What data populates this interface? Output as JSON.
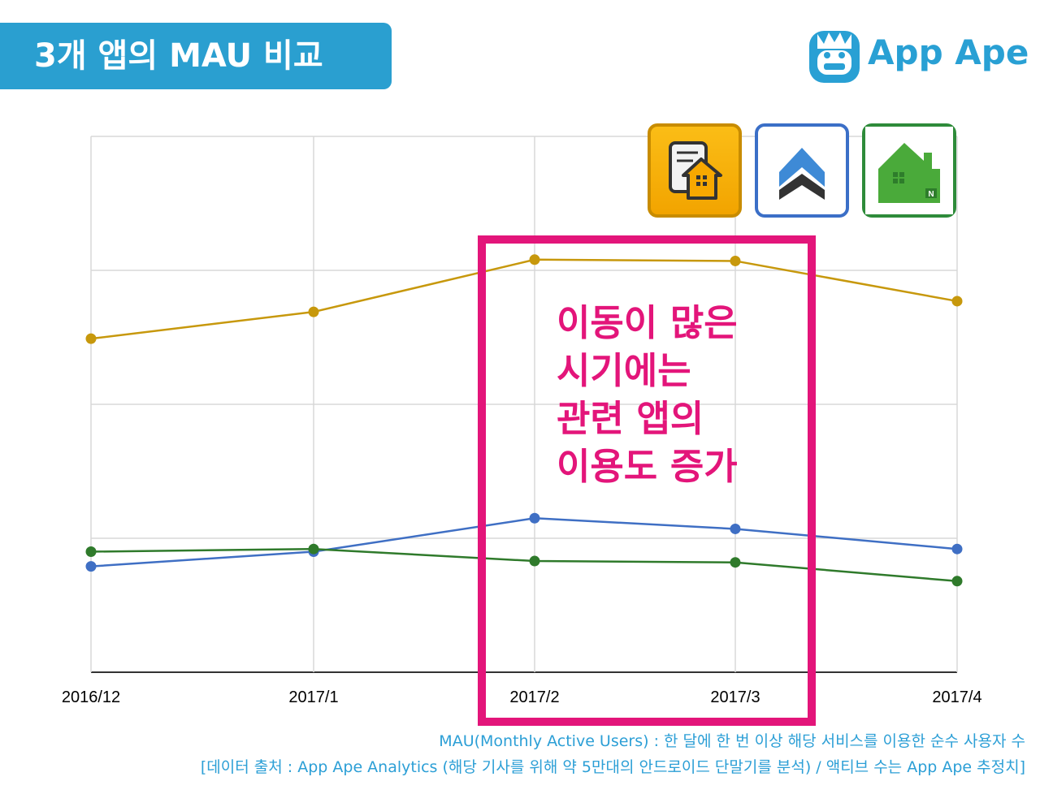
{
  "header": {
    "title": "3개 앱의 MAU 비교"
  },
  "logo": {
    "text": "App Ape",
    "icon": "ape-face-icon"
  },
  "app_icons": [
    {
      "icon": "yellow-house-document-app-icon",
      "color": "#f2a400"
    },
    {
      "icon": "blue-roof-app-icon",
      "color": "#3b6fc7"
    },
    {
      "icon": "green-house-n-app-icon",
      "color": "#2e8b3a"
    }
  ],
  "annotation": {
    "lines": [
      "이동이 많은",
      "시기에는",
      "관련 앱의",
      "이용도 증가"
    ],
    "color": "#e3157a"
  },
  "chart_data": {
    "type": "line",
    "categories": [
      "2016/12",
      "2017/1",
      "2017/2",
      "2017/3",
      "2017/4"
    ],
    "ylim": [
      0,
      4
    ],
    "grid": true,
    "series": [
      {
        "color": "#c7980c",
        "values": [
          2.49,
          2.69,
          3.08,
          3.07,
          2.77
        ]
      },
      {
        "color": "#3f6fc4",
        "values": [
          0.79,
          0.9,
          1.15,
          1.07,
          0.92
        ]
      },
      {
        "color": "#2f7a2b",
        "values": [
          0.9,
          0.92,
          0.83,
          0.82,
          0.68
        ]
      }
    ]
  },
  "footnotes": [
    "MAU(Monthly Active Users) : 한 달에 한 번 이상 해당 서비스를 이용한 순수 사용자 수",
    "[데이터 출처 : App Ape Analytics (해당 기사를 위해 약 5만대의 안드로이드 단말기를 분석) / 액티브 수는 App Ape 추정치]"
  ]
}
